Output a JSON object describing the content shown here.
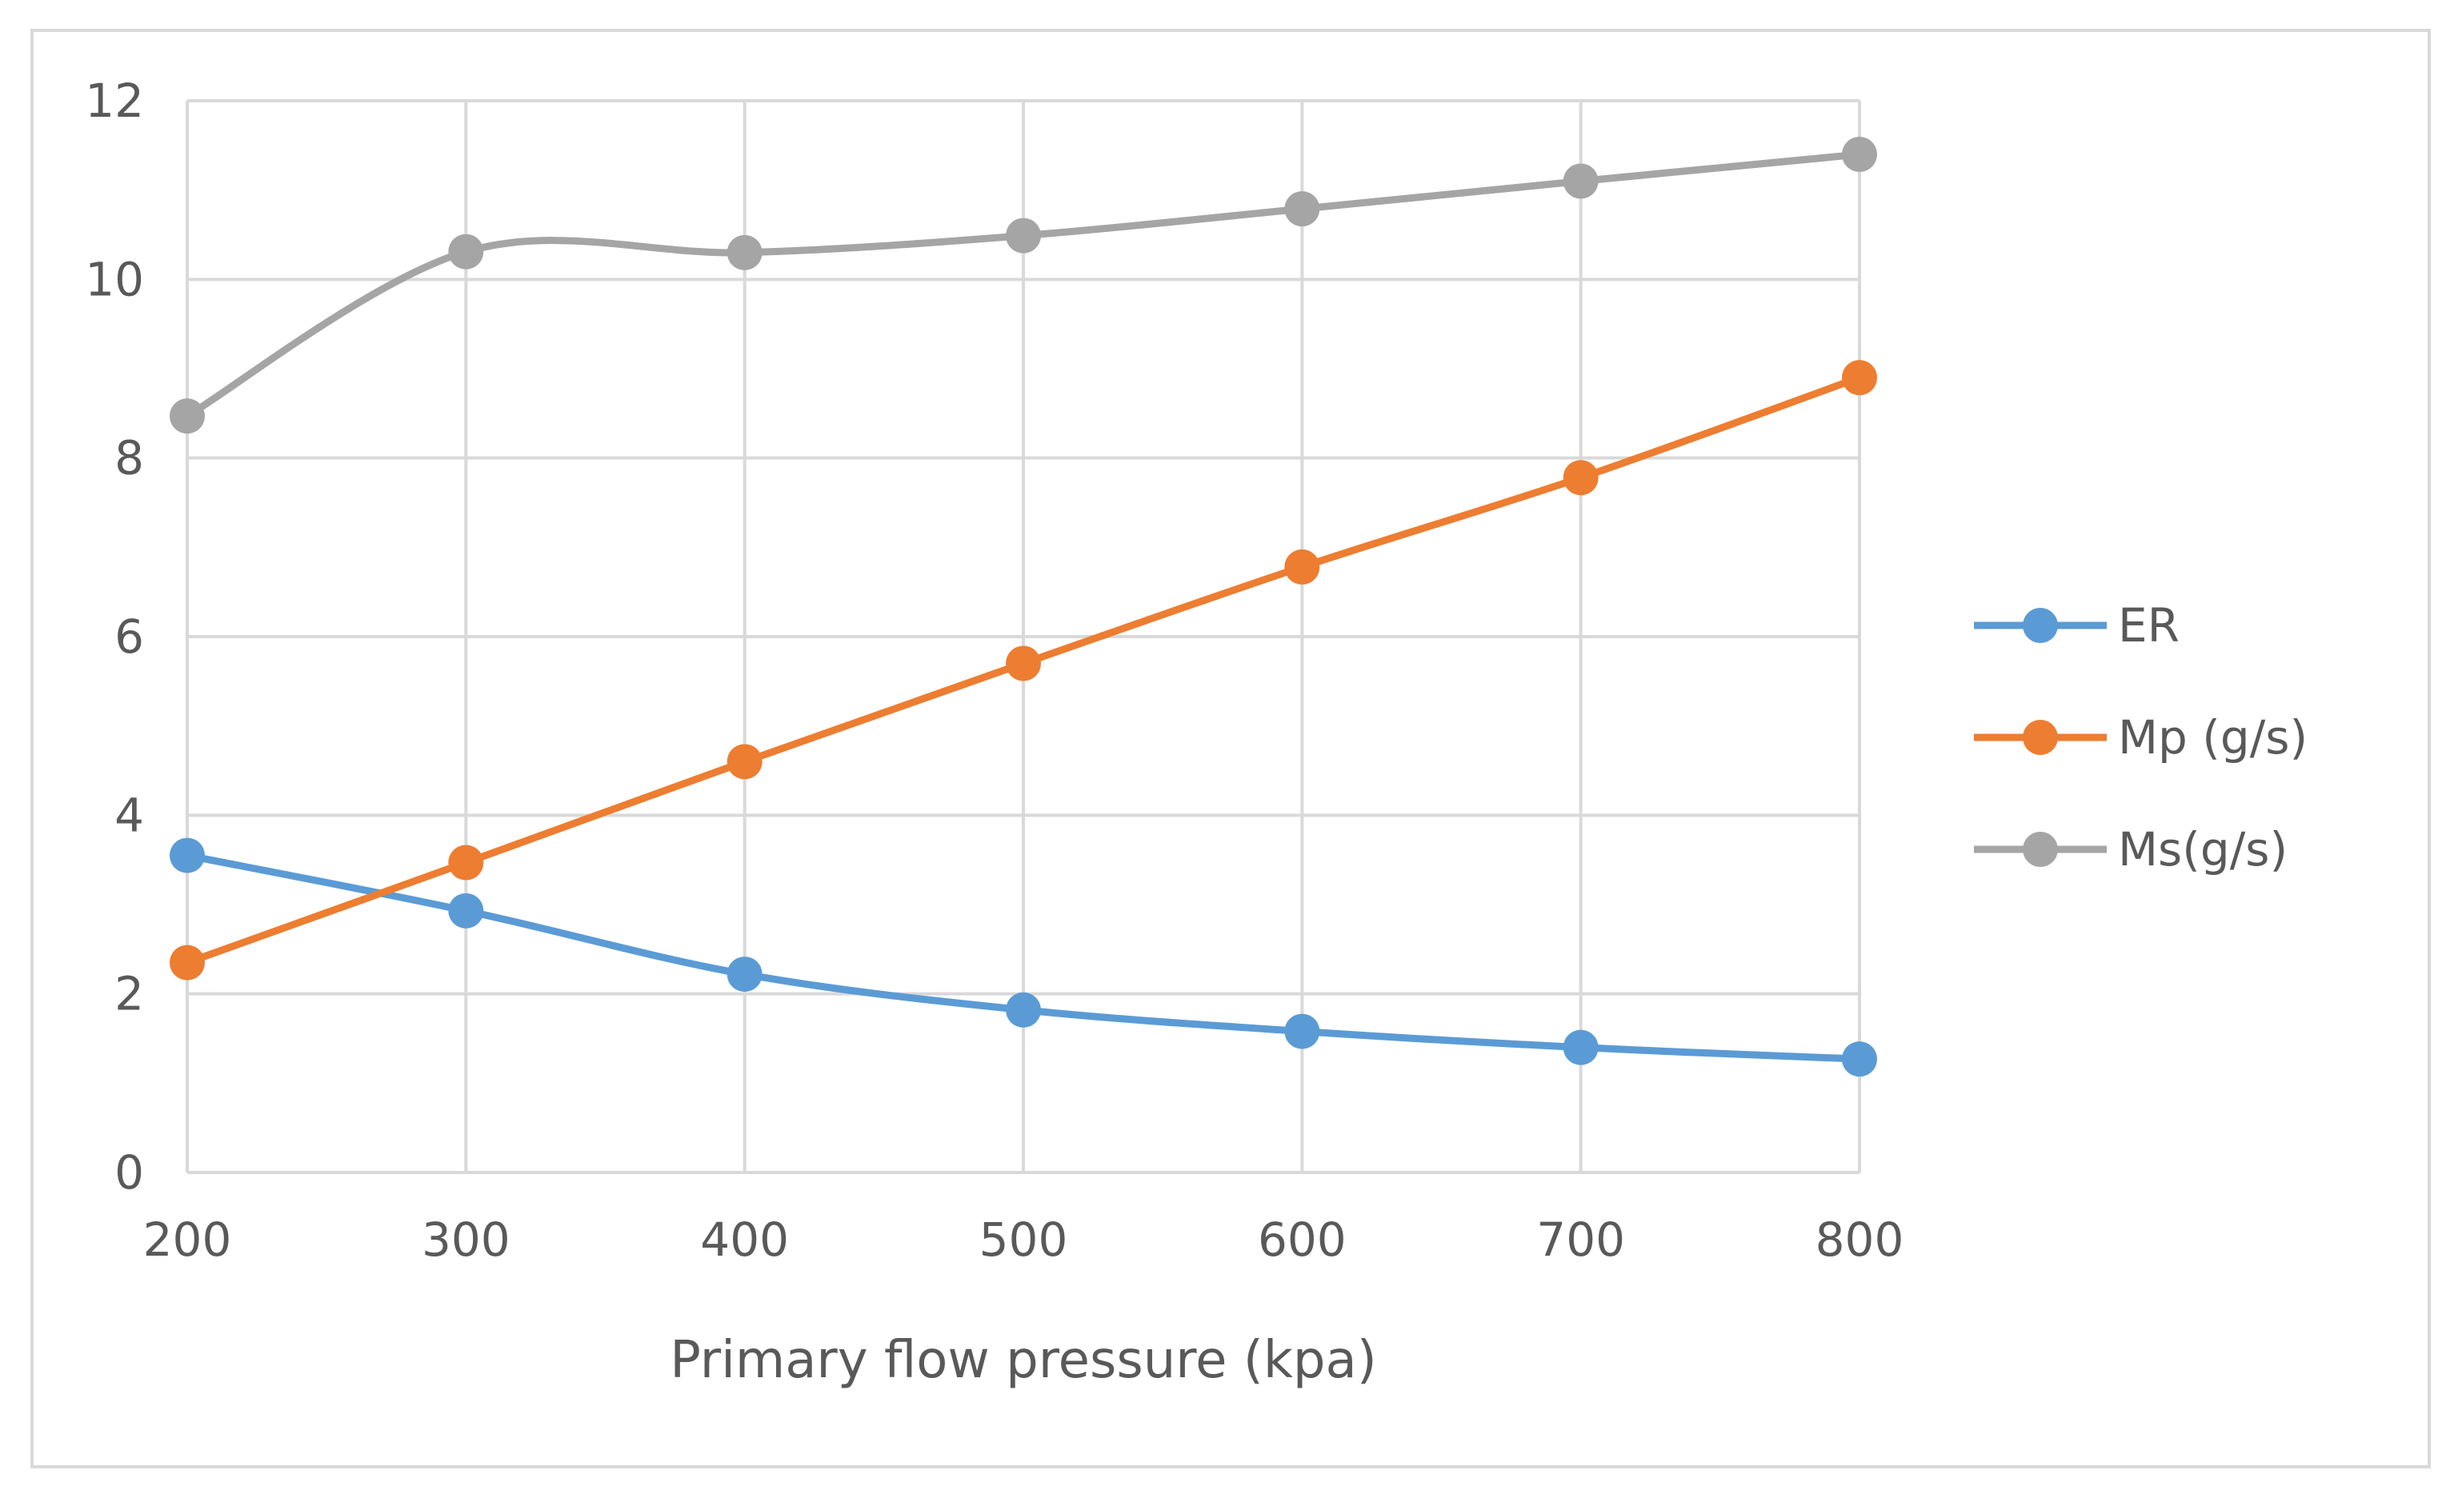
{
  "chart_data": {
    "type": "line",
    "title": "",
    "xlabel": "Primary flow pressure (kpa)",
    "ylabel": "",
    "x": [
      200,
      300,
      400,
      500,
      600,
      700,
      800
    ],
    "xlim": [
      200,
      800
    ],
    "ylim": [
      0,
      12
    ],
    "x_ticks": [
      "200",
      "300",
      "400",
      "500",
      "600",
      "700",
      "800"
    ],
    "y_ticks": [
      "0",
      "2",
      "4",
      "6",
      "8",
      "10",
      "12"
    ],
    "grid": true,
    "smooth": true,
    "legend_position": "right",
    "series": [
      {
        "name": "ER",
        "color": "#5b9bd5",
        "values": [
          3.55,
          2.93,
          2.22,
          1.82,
          1.58,
          1.4,
          1.27
        ]
      },
      {
        "name": "Mp (g/s)",
        "color": "#ed7d31",
        "values": [
          2.35,
          3.47,
          4.6,
          5.7,
          6.78,
          7.78,
          8.9
        ]
      },
      {
        "name": "Ms(g/s)",
        "color": "#a5a5a5",
        "values": [
          8.47,
          10.31,
          10.3,
          10.49,
          10.79,
          11.1,
          11.4
        ]
      }
    ]
  }
}
